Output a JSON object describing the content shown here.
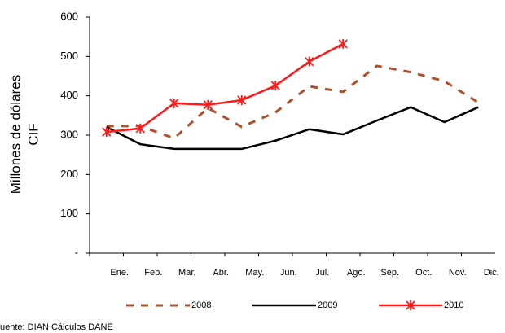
{
  "chart_data": {
    "type": "line",
    "ylabel": [
      "Millones de dólares",
      "CIF"
    ],
    "categories": [
      "Ene.",
      "Feb.",
      "Mar.",
      "Abr.",
      "May.",
      "Jun.",
      "Jul.",
      "Ago.",
      "Sep.",
      "Oct.",
      "Nov.",
      "Dic."
    ],
    "series": [
      {
        "name": "2008",
        "color": "#b0502a",
        "dash": true,
        "marker": false,
        "values": [
          323,
          323,
          292,
          369,
          321,
          358,
          424,
          410,
          476,
          460,
          437,
          383
        ]
      },
      {
        "name": "2009",
        "color": "#000000",
        "dash": false,
        "marker": false,
        "values": [
          321,
          277,
          265,
          265,
          265,
          286,
          315,
          302,
          337,
          371,
          333,
          371
        ]
      },
      {
        "name": "2010",
        "color": "#ff1a1a",
        "dash": false,
        "marker": true,
        "values": [
          308,
          317,
          381,
          377,
          389,
          426,
          487,
          532,
          null,
          null,
          null,
          null
        ]
      }
    ],
    "ylim": [
      0,
      600
    ],
    "yticks": [
      {
        "value": 0,
        "label": "-"
      },
      100,
      200,
      300,
      400,
      500,
      600
    ],
    "grid": false,
    "legend": "bottom",
    "source": "uente: DIAN Cálculos  DANE"
  }
}
